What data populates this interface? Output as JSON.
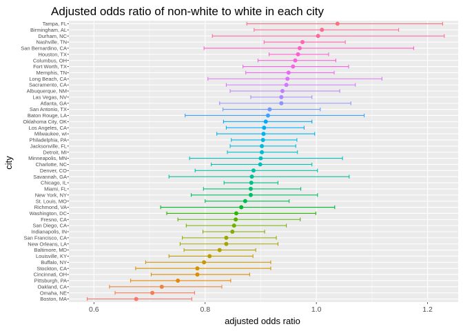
{
  "chart_data": {
    "type": "scatter",
    "subtype": "point-with-errorbars",
    "title": "Adjusted odds ratio of non-white to white in each city",
    "xlabel": "adjusted odds ratio",
    "ylabel": "city",
    "xlim": [
      0.555,
      1.255
    ],
    "xticks": [
      0.6,
      0.8,
      1.0,
      1.2
    ],
    "xtick_labels": [
      "0.6",
      "0.8",
      "1.0",
      "1.2"
    ],
    "grid": true,
    "legend": "none",
    "colors": {
      "panel_background": "#ebebeb",
      "grid_major": "#ffffff",
      "page_background": "#ffffff"
    },
    "cities": [
      "Tampa, FL",
      "Birmingham, AL",
      "Durham, NC",
      "Nashville, TN",
      "San Bernardino, CA",
      "Houston, TX",
      "Columbus, OH",
      "Fort Worth, TX",
      "Memphis, TN",
      "Long Beach, CA",
      "Sacramento, CA",
      "Albuquerque, NM",
      "Las Vegas, NV",
      "Atlanta, GA",
      "San Antonio, TX",
      "Baton Rouge, LA",
      "Oklahoma City, OK",
      "Los Angeles, CA",
      "Milwaukee, wI",
      "Philadelphia, PA",
      "Jacksonville, FL",
      "Detroit, MI",
      "Minneapolis, MN",
      "Charlotte, NC",
      "Denver, CO",
      "Savannah, GA",
      "Chicago, IL",
      "Miami, FL",
      "New York, NY",
      "St. Louis, MO",
      "Richmond, VA",
      "Washington, DC",
      "Fresno, CA",
      "San Diego, CA",
      "Indianapolis, IN",
      "San Francisco, CA",
      "New Orleans, LA",
      "Baltimore, MD",
      "Louisville, KY",
      "Buffalo, NY",
      "Stockton, CA",
      "Cincinnati, OH",
      "Pittsburgh, PA",
      "Oakland, CA",
      "Omaha, NE",
      "Boston, MA"
    ],
    "estimate": [
      1.038,
      1.01,
      1.003,
      0.975,
      0.97,
      0.967,
      0.962,
      0.958,
      0.95,
      0.948,
      0.946,
      0.939,
      0.937,
      0.937,
      0.916,
      0.913,
      0.909,
      0.906,
      0.905,
      0.904,
      0.902,
      0.902,
      0.9,
      0.899,
      0.887,
      0.884,
      0.883,
      0.882,
      0.882,
      0.872,
      0.865,
      0.856,
      0.855,
      0.852,
      0.849,
      0.838,
      0.838,
      0.826,
      0.808,
      0.798,
      0.786,
      0.786,
      0.751,
      0.722,
      0.705,
      0.676
    ],
    "conf_low": [
      0.875,
      0.888,
      0.813,
      0.906,
      0.798,
      0.915,
      0.895,
      0.868,
      0.873,
      0.805,
      0.838,
      0.845,
      0.882,
      0.826,
      0.832,
      0.764,
      0.833,
      0.838,
      0.821,
      0.847,
      0.845,
      0.84,
      0.772,
      0.811,
      0.782,
      0.735,
      0.834,
      0.797,
      0.775,
      0.8,
      0.72,
      0.731,
      0.751,
      0.766,
      0.796,
      0.759,
      0.755,
      0.762,
      0.735,
      0.693,
      0.675,
      0.703,
      0.666,
      0.628,
      0.638,
      0.588
    ],
    "conf_high": [
      1.227,
      1.148,
      1.23,
      1.052,
      1.175,
      1.022,
      1.035,
      1.058,
      1.032,
      1.118,
      1.07,
      1.042,
      0.992,
      1.062,
      1.007,
      1.086,
      0.992,
      0.978,
      0.997,
      0.965,
      0.963,
      0.966,
      1.047,
      0.992,
      1.002,
      1.059,
      0.931,
      0.972,
      1.002,
      0.951,
      1.033,
      0.999,
      0.971,
      0.946,
      0.907,
      0.928,
      0.931,
      0.891,
      0.886,
      0.918,
      0.918,
      0.88,
      0.846,
      0.83,
      0.781,
      0.776
    ]
  }
}
